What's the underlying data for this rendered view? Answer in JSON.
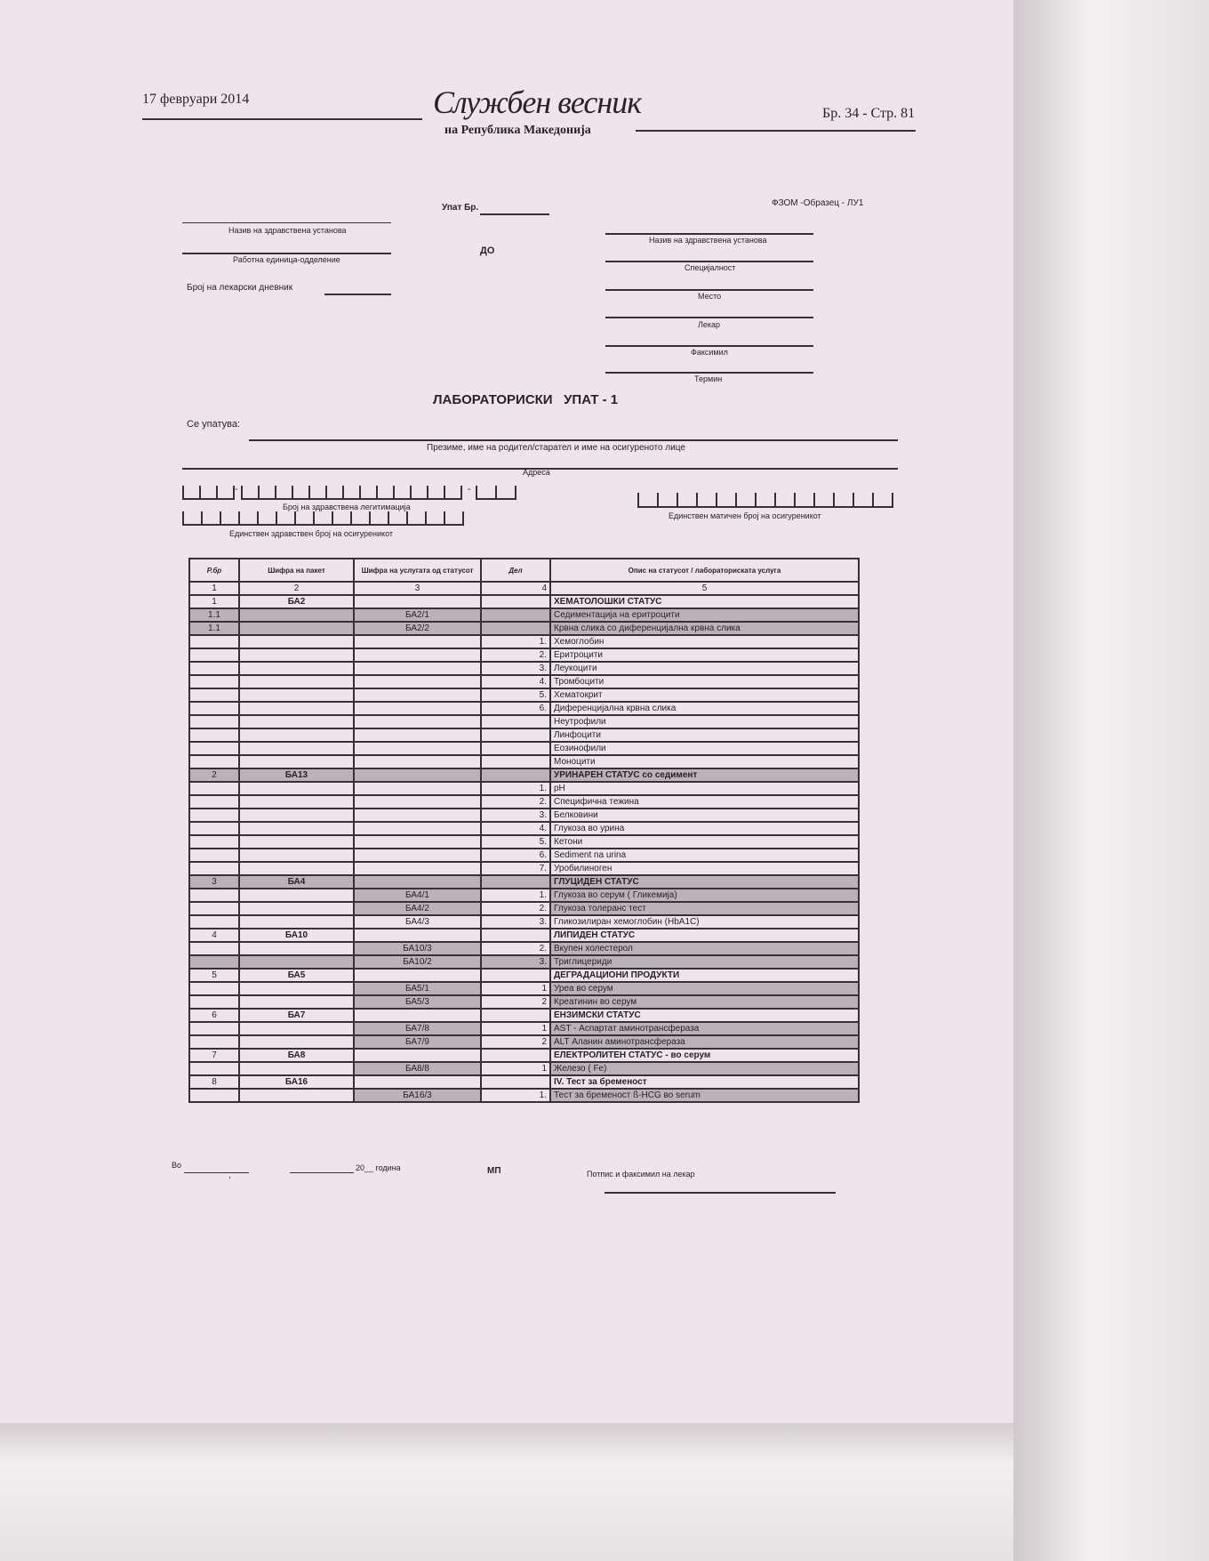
{
  "header": {
    "date": "17 февруари 2014",
    "logo_title": "Службен весник",
    "logo_subtitle": "на Република Македонија",
    "issue_page": "Бр. 34 - Стр. 81"
  },
  "form": {
    "referral_no_label": "Упат Бр.",
    "form_code": "ФЗОМ -Образец - ЛУ1",
    "from_institution_label": "Назив на здравствена установа",
    "work_unit_label": "Работна единица-одделение",
    "journal_no_label": "Број на лекарски дневник",
    "to_label": "ДО",
    "to_institution_label": "Назив на здравствена установа",
    "specialty_label": "Специјалност",
    "place_label": "Место",
    "doctor_label": "Лекар",
    "facsimile_label": "Факсимил",
    "appointment_label": "Термин",
    "title": "ЛАБОРАТОРИСКИ   УПАТ - 1",
    "referred_label": "Се упатува:",
    "name_label": "Презиме, име на родител/старател и име на осигуреното лице",
    "address_label": "Адреса",
    "health_id_label": "Број на здравствена легитимација",
    "unique_health_no_label": "Единствен здравствен број на осигуреникот",
    "embg_label": "Единствен матичен број на осигуреникот"
  },
  "table": {
    "headers": [
      "Р.бр",
      "Шифра на пакет",
      "Шифра на услугата од статусот",
      "Дел",
      "Опис на статусот / лабораториската услуга"
    ],
    "col_numbers": [
      "1",
      "2",
      "3",
      "4",
      "5"
    ],
    "rows": [
      {
        "no": "1",
        "pkg": "БА2",
        "code": "",
        "part": "",
        "desc": "ХЕМАТОЛОШКИ СТАТУС",
        "bold": true,
        "shade": "none"
      },
      {
        "no": "1.1",
        "pkg": "",
        "code": "БА2/1",
        "part": "",
        "desc": "Седиментација на еритроцити",
        "shade": "all"
      },
      {
        "no": "1.1",
        "pkg": "",
        "code": "БА2/2",
        "part": "",
        "desc": "Крвна слика со диференцијална крвна слика",
        "shade": "all"
      },
      {
        "no": "",
        "pkg": "",
        "code": "",
        "part": "1.",
        "desc": "Хемоглобин",
        "shade": "none"
      },
      {
        "no": "",
        "pkg": "",
        "code": "",
        "part": "2.",
        "desc": "Еритроцити",
        "shade": "none"
      },
      {
        "no": "",
        "pkg": "",
        "code": "",
        "part": "3.",
        "desc": "Леукоцити",
        "shade": "none"
      },
      {
        "no": "",
        "pkg": "",
        "code": "",
        "part": "4.",
        "desc": "Тромбоцити",
        "shade": "none"
      },
      {
        "no": "",
        "pkg": "",
        "code": "",
        "part": "5.",
        "desc": "Хематокрит",
        "shade": "none"
      },
      {
        "no": "",
        "pkg": "",
        "code": "",
        "part": "6.",
        "desc": "Диференцијална крвна слика",
        "shade": "none"
      },
      {
        "no": "",
        "pkg": "",
        "code": "",
        "part": "",
        "desc": "Неутрофили",
        "shade": "none"
      },
      {
        "no": "",
        "pkg": "",
        "code": "",
        "part": "",
        "desc": "Линфоцити",
        "shade": "none"
      },
      {
        "no": "",
        "pkg": "",
        "code": "",
        "part": "",
        "desc": "Еозинофили",
        "shade": "none"
      },
      {
        "no": "",
        "pkg": "",
        "code": "",
        "part": "",
        "desc": "Моноцити",
        "shade": "none"
      },
      {
        "no": "2",
        "pkg": "БА13",
        "code": "",
        "part": "",
        "desc": "УРИНАРЕН СТАТУС со седимент",
        "bold": true,
        "shade": "all"
      },
      {
        "no": "",
        "pkg": "",
        "code": "",
        "part": "1.",
        "desc": "pH",
        "shade": "none"
      },
      {
        "no": "",
        "pkg": "",
        "code": "",
        "part": "2.",
        "desc": "Специфична тежина",
        "shade": "none"
      },
      {
        "no": "",
        "pkg": "",
        "code": "",
        "part": "3.",
        "desc": "Белковини",
        "shade": "none"
      },
      {
        "no": "",
        "pkg": "",
        "code": "",
        "part": "4.",
        "desc": "Глукоза во урина",
        "shade": "none"
      },
      {
        "no": "",
        "pkg": "",
        "code": "",
        "part": "5.",
        "desc": "Кетони",
        "shade": "none"
      },
      {
        "no": "",
        "pkg": "",
        "code": "",
        "part": "6.",
        "desc": "Sediment na urina",
        "shade": "none"
      },
      {
        "no": "",
        "pkg": "",
        "code": "",
        "part": "7.",
        "desc": "Уробилиноген",
        "shade": "none"
      },
      {
        "no": "3",
        "pkg": "БА4",
        "code": "",
        "part": "",
        "desc": "ГЛУЦИДЕН СТАТУС",
        "bold": true,
        "shade": "all"
      },
      {
        "no": "",
        "pkg": "",
        "code": "БА4/1",
        "part": "1.",
        "desc": "Глукоза во серум ( Гликемија)",
        "shade": "part"
      },
      {
        "no": "",
        "pkg": "",
        "code": "БА4/2",
        "part": "2.",
        "desc": "Глукоза толеранс тест",
        "shade": "part"
      },
      {
        "no": "",
        "pkg": "",
        "code": "БА4/3",
        "part": "3.",
        "desc": "Гликозилиран хемоглобин (HbA1C)",
        "shade": "none"
      },
      {
        "no": "4",
        "pkg": "БА10",
        "code": "",
        "part": "",
        "desc": "ЛИПИДЕН СТАТУС",
        "bold": true,
        "shade": "none"
      },
      {
        "no": "",
        "pkg": "",
        "code": "БА10/3",
        "part": "2.",
        "desc": "Вкупен холестерол",
        "shade": "part"
      },
      {
        "no": "",
        "pkg": "",
        "code": "БА10/2",
        "part": "3.",
        "desc": "Триглицериди",
        "shade": "all"
      },
      {
        "no": "5",
        "pkg": "БА5",
        "code": "",
        "part": "",
        "desc": "ДЕГРАДАЦИОНИ ПРОДУКТИ",
        "bold": true,
        "shade": "none"
      },
      {
        "no": "",
        "pkg": "",
        "code": "БА5/1",
        "part": "1",
        "desc": "Уреа во серум",
        "shade": "part"
      },
      {
        "no": "",
        "pkg": "",
        "code": "БА5/3",
        "part": "2",
        "desc": "Креатинин во серум",
        "shade": "part"
      },
      {
        "no": "6",
        "pkg": "БА7",
        "code": "",
        "part": "",
        "desc": "ЕНЗИМСКИ СТАТУС",
        "bold": true,
        "shade": "none"
      },
      {
        "no": "",
        "pkg": "",
        "code": "БА7/8",
        "part": "1",
        "desc": "AST - Аспартат аминотрансфераза",
        "shade": "part"
      },
      {
        "no": "",
        "pkg": "",
        "code": "БА7/9",
        "part": "2",
        "desc": "ALT Аланин аминотрансфераза",
        "shade": "part"
      },
      {
        "no": "7",
        "pkg": "БА8",
        "code": "",
        "part": "",
        "desc": "ЕЛЕКТРОЛИТЕН СТАТУС - во серум",
        "bold": true,
        "shade": "none"
      },
      {
        "no": "",
        "pkg": "",
        "code": "БА8/8",
        "part": "1",
        "desc": "Железо ( Fe)",
        "shade": "part"
      },
      {
        "no": "8",
        "pkg": "БА16",
        "code": "",
        "part": "",
        "desc": "IV. Тест за бременост",
        "bold": true,
        "shade": "none"
      },
      {
        "no": "",
        "pkg": "",
        "code": "БА16/3",
        "part": "1.",
        "desc": "Тест за бременост ß-HCG во serum",
        "shade": "part"
      }
    ]
  },
  "footer": {
    "in_label": "Во",
    "year_label": "20__ година",
    "stamp_label": "МП",
    "signature_label": "Потпис и факсимил на лекар"
  }
}
